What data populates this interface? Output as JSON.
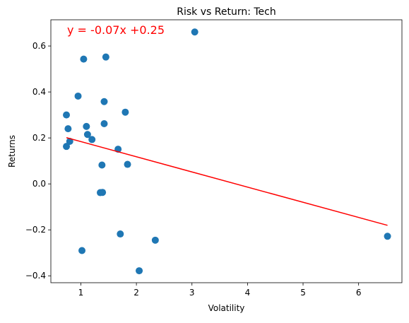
{
  "chart_data": {
    "type": "scatter",
    "title": "Risk vs Return: Tech",
    "xlabel": "Volatility",
    "ylabel": "Returns",
    "xlim": [
      0.46,
      6.78
    ],
    "ylim": [
      -0.43,
      0.714
    ],
    "xticks": [
      1,
      2,
      3,
      4,
      5,
      6
    ],
    "yticks": [
      -0.4,
      -0.2,
      0.0,
      0.2,
      0.4,
      0.6
    ],
    "xtick_labels": [
      "1",
      "2",
      "3",
      "4",
      "5",
      "6"
    ],
    "ytick_labels": [
      "−0.4",
      "−0.2",
      "0.0",
      "0.2",
      "0.4",
      "0.6"
    ],
    "grid": false,
    "annotations": [
      {
        "text": "y = -0.07x +0.25",
        "color": "#ff0000"
      }
    ],
    "colors": {
      "points": "#1f77b4",
      "regression": "#ff0000"
    },
    "series": [
      {
        "points": [
          [
            0.74,
            0.3
          ],
          [
            0.74,
            0.163
          ],
          [
            0.77,
            0.24
          ],
          [
            0.8,
            0.185
          ],
          [
            0.95,
            0.382
          ],
          [
            1.02,
            -0.29
          ],
          [
            1.05,
            0.543
          ],
          [
            1.1,
            0.25
          ],
          [
            1.12,
            0.215
          ],
          [
            1.2,
            0.193
          ],
          [
            1.35,
            -0.038
          ],
          [
            1.38,
            0.082
          ],
          [
            1.39,
            -0.037
          ],
          [
            1.42,
            0.358
          ],
          [
            1.42,
            0.262
          ],
          [
            1.45,
            0.552
          ],
          [
            1.67,
            0.151
          ],
          [
            1.71,
            -0.218
          ],
          [
            1.8,
            0.312
          ],
          [
            1.84,
            0.085
          ],
          [
            2.05,
            -0.378
          ],
          [
            2.34,
            -0.245
          ],
          [
            3.05,
            0.661
          ],
          [
            6.52,
            -0.228
          ]
        ]
      }
    ],
    "regression": {
      "slope": -0.066,
      "intercept": 0.25,
      "x_range": [
        0.74,
        6.52
      ]
    }
  }
}
